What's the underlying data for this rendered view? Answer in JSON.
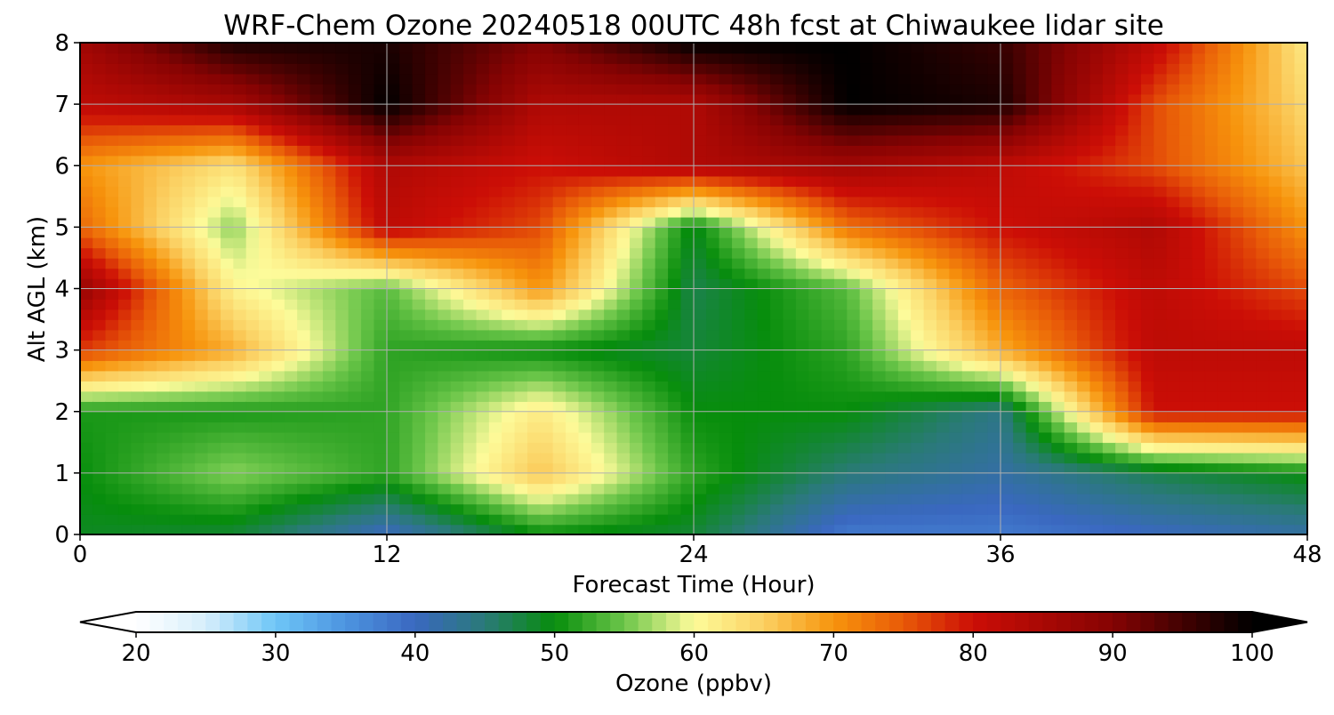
{
  "chart_data": {
    "type": "heatmap",
    "title": "WRF-Chem Ozone  20240518 00UTC 48h fcst at Chiwaukee lidar site",
    "xlabel": "Forecast Time (Hour)",
    "ylabel": "Alt AGL (km)",
    "xlim": [
      0,
      48
    ],
    "ylim": [
      0,
      8
    ],
    "x_ticks": [
      0,
      12,
      24,
      36,
      48
    ],
    "y_ticks": [
      0,
      1,
      2,
      3,
      4,
      5,
      6,
      7,
      8
    ],
    "grid": true,
    "x": [
      0,
      6,
      12,
      18,
      24,
      30,
      36,
      42,
      48
    ],
    "y": [
      0,
      1,
      2,
      3,
      4,
      5,
      6,
      7,
      8
    ],
    "z_ppbv": [
      [
        49,
        48,
        40,
        50,
        48,
        38,
        38,
        40,
        42
      ],
      [
        50,
        56,
        52,
        66,
        52,
        45,
        42,
        47,
        50
      ],
      [
        51,
        51,
        52,
        62,
        50,
        50,
        44,
        80,
        80
      ],
      [
        77,
        68,
        52,
        50,
        48,
        52,
        68,
        82,
        82
      ],
      [
        88,
        61,
        54,
        70,
        47,
        54,
        74,
        82,
        76
      ],
      [
        74,
        56,
        82,
        76,
        49,
        73,
        80,
        84,
        70
      ],
      [
        70,
        63,
        84,
        80,
        84,
        86,
        82,
        76,
        66
      ],
      [
        82,
        85,
        100,
        84,
        84,
        100,
        98,
        76,
        64
      ],
      [
        86,
        98,
        98,
        90,
        100,
        100,
        96,
        82,
        62
      ]
    ],
    "colorbar": {
      "label": "Ozone  (ppbv)",
      "min": 20,
      "max": 100,
      "ticks": [
        20,
        30,
        40,
        50,
        60,
        70,
        80,
        90,
        100
      ],
      "extend": "both",
      "orientation": "horizontal",
      "colors": {
        "20": "#ffffff",
        "25": "#d6eefb",
        "30": "#6ec6f7",
        "35": "#4d94e0",
        "40": "#3a68c0",
        "45": "#2a7a78",
        "50": "#078d0c",
        "55": "#6cc64a",
        "60": "#fdfb9a",
        "65": "#fbd062",
        "70": "#f7940c",
        "75": "#e85a08",
        "80": "#cc0e06",
        "90": "#850303",
        "100": "#000000"
      }
    }
  }
}
